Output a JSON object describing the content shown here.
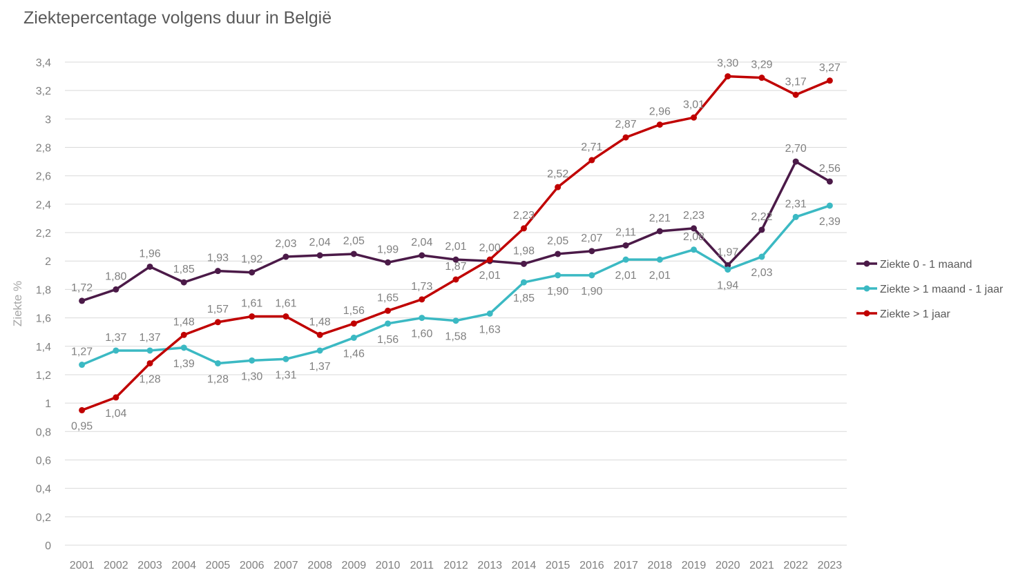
{
  "chart_data": {
    "type": "line",
    "title": "Ziektepercentage volgens duur in België",
    "ylabel": "Ziekte %",
    "xlabel": "",
    "ylim": [
      0,
      3.4
    ],
    "ytick_step": 0.2,
    "yticks": [
      "0",
      "0,2",
      "0,4",
      "0,6",
      "0,8",
      "1",
      "1,2",
      "1,4",
      "1,6",
      "1,8",
      "2",
      "2,2",
      "2,4",
      "2,6",
      "2,8",
      "3",
      "3,2",
      "3,4"
    ],
    "grid": true,
    "legend_position": "right",
    "categories": [
      "2001",
      "2002",
      "2003",
      "2004",
      "2005",
      "2006",
      "2007",
      "2008",
      "2009",
      "2010",
      "2011",
      "2012",
      "2013",
      "2014",
      "2015",
      "2016",
      "2017",
      "2018",
      "2019",
      "2020",
      "2021",
      "2022",
      "2023"
    ],
    "series": [
      {
        "name": "Ziekte 0 - 1 maand",
        "color": "#4b1a48",
        "values": [
          1.72,
          1.8,
          1.96,
          1.85,
          1.93,
          1.92,
          2.03,
          2.04,
          2.05,
          1.99,
          2.04,
          2.01,
          2.0,
          1.98,
          2.05,
          2.07,
          2.11,
          2.21,
          2.23,
          1.97,
          2.22,
          2.7,
          2.56
        ],
        "labels": [
          "1,72",
          "1,80",
          "1,96",
          "1,85",
          "1,93",
          "1,92",
          "2,03",
          "2,04",
          "2,05",
          "1,99",
          "2,04",
          "2,01",
          "2,00",
          "1,98",
          "2,05",
          "2,07",
          "2,11",
          "2,21",
          "2,23",
          "1,97",
          "2,22",
          "2,70",
          "2,56"
        ]
      },
      {
        "name": "Ziekte > 1 maand - 1 jaar",
        "color": "#3bb9c3",
        "values": [
          1.27,
          1.37,
          1.37,
          1.39,
          1.28,
          1.3,
          1.31,
          1.37,
          1.46,
          1.56,
          1.6,
          1.58,
          1.63,
          1.85,
          1.9,
          1.9,
          2.01,
          2.01,
          2.08,
          1.94,
          2.03,
          2.31,
          2.39
        ],
        "labels": [
          "1,27",
          "1,37",
          "1,37",
          "1,39",
          "1,28",
          "1,30",
          "1,31",
          "1,37",
          "1,46",
          "1,56",
          "1,60",
          "1,58",
          "1,63",
          "1,85",
          "1,90",
          "1,90",
          "2,01",
          "2,01",
          "2,08",
          "1,94",
          "2,03",
          "2,31",
          "2,39"
        ]
      },
      {
        "name": "Ziekte > 1 jaar",
        "color": "#c00000",
        "values": [
          0.95,
          1.04,
          1.28,
          1.48,
          1.57,
          1.61,
          1.61,
          1.48,
          1.56,
          1.65,
          1.73,
          1.87,
          2.01,
          2.23,
          2.52,
          2.71,
          2.87,
          2.96,
          3.01,
          3.3,
          3.29,
          3.17,
          3.27
        ],
        "labels": [
          "0,95",
          "1,04",
          "1,28",
          "1,48",
          "1,57",
          "1,61",
          "1,61",
          "1,48",
          "1,56",
          "1,65",
          "1,73",
          "1,87",
          "2,01",
          "2,23",
          "2,52",
          "2,71",
          "2,87",
          "2,96",
          "3,01",
          "3,30",
          "3,29",
          "3,17",
          "3,27"
        ]
      }
    ]
  }
}
